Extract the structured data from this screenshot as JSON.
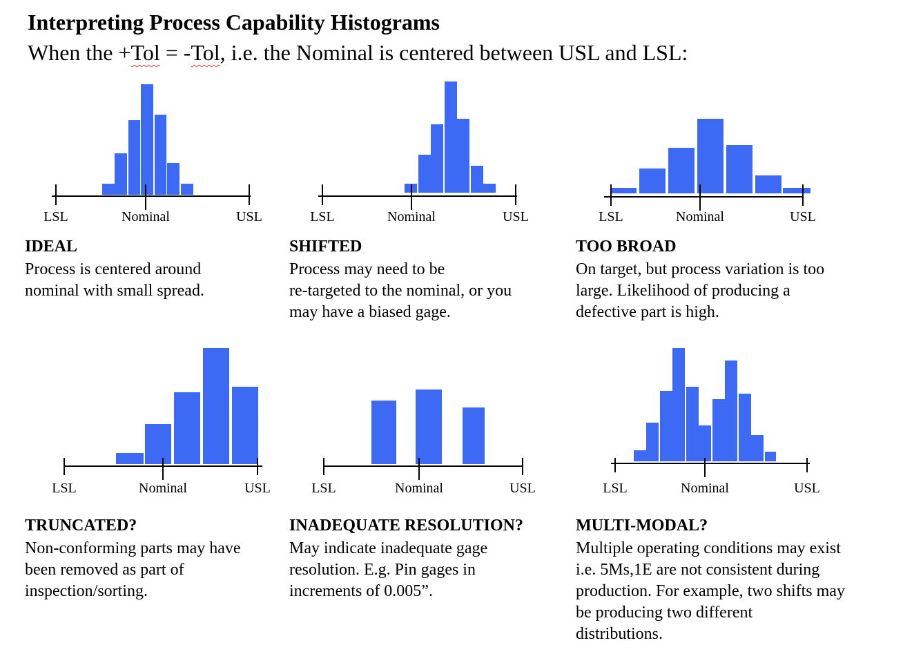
{
  "title": "Interpreting Process Capability Histograms",
  "subtitle": {
    "before": "When the +",
    "tol1": "Tol",
    "middle": " = -",
    "tol2": "Tol",
    "after": ", i.e. the Nominal is centered between USL and LSL:"
  },
  "axis_labels": {
    "lsl": "LSL",
    "nominal": "Nominal",
    "usl": "USL"
  },
  "bar_color": "#3d6af5",
  "panels": [
    {
      "heading": "IDEAL",
      "text": "Process is centered around\nnominal with small spread."
    },
    {
      "heading": "SHIFTED",
      "text": "Process may need to be\nre-targeted to the nominal, or you\nmay have a biased gage."
    },
    {
      "heading": "TOO BROAD",
      "text": "On target, but process variation is too\nlarge. Likelihood of producing a\ndefective part is high."
    },
    {
      "heading": "TRUNCATED?",
      "text": "Non-conforming parts may have\nbeen removed as part of\ninspection/sorting."
    },
    {
      "heading": "INADEQUATE RESOLUTION?",
      "text": "May indicate inadequate gage\nresolution. E.g. Pin gages in\nincrements of 0.005”."
    },
    {
      "heading": "MULTI-MODAL?",
      "text": "Multiple operating conditions may exist\ni.e. 5Ms,1E are not consistent during\nproduction. For example, two shifts may\nbe producing two different\ndistributions."
    }
  ]
}
